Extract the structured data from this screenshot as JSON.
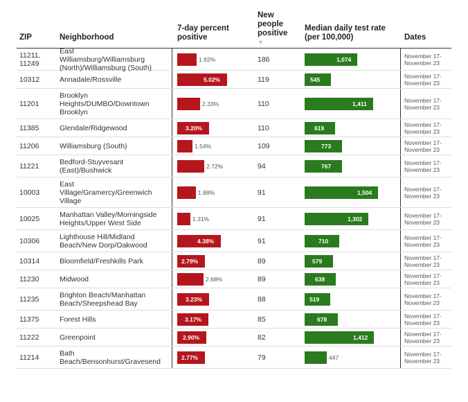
{
  "chart_data": {
    "type": "table",
    "columns": {
      "zip": "ZIP",
      "neighborhood": "Neighborhood",
      "pct": "7-day percent positive",
      "new": "New people positive",
      "sort_indicator": "▼",
      "rate": "Median daily test rate (per 100,000)",
      "dates": "Dates"
    },
    "pct_max": 5.02,
    "rate_max": 1504,
    "rows": [
      {
        "zip": "11211, 11249",
        "neighborhood": "East Williamsburg/Williamsburg (North)/Williamsburg (South)",
        "pct": 1.92,
        "pct_label": "1.92%",
        "new": "186",
        "rate": 1074,
        "rate_label": "1,074",
        "dates": "November 17-November 23"
      },
      {
        "zip": "10312",
        "neighborhood": "Annadale/Rossville",
        "pct": 5.02,
        "pct_label": "5.02%",
        "new": "119",
        "rate": 545,
        "rate_label": "545",
        "dates": "November 17-November 23"
      },
      {
        "zip": "11201",
        "neighborhood": "Brooklyn Heights/DUMBO/Downtown Brooklyn",
        "pct": 2.33,
        "pct_label": "2.33%",
        "new": "110",
        "rate": 1411,
        "rate_label": "1,411",
        "dates": "November 17-November 23"
      },
      {
        "zip": "11385",
        "neighborhood": "Glendale/Ridgewood",
        "pct": 3.2,
        "pct_label": "3.20%",
        "new": "110",
        "rate": 619,
        "rate_label": "619",
        "dates": "November 17-November 23"
      },
      {
        "zip": "11206",
        "neighborhood": "Williamsburg (South)",
        "pct": 1.54,
        "pct_label": "1.54%",
        "new": "109",
        "rate": 773,
        "rate_label": "773",
        "dates": "November 17-November 23"
      },
      {
        "zip": "11221",
        "neighborhood": "Bedford-Stuyvesant (East)/Bushwick",
        "pct": 2.72,
        "pct_label": "2.72%",
        "new": "94",
        "rate": 767,
        "rate_label": "767",
        "dates": "November 17-November 23"
      },
      {
        "zip": "10003",
        "neighborhood": "East Village/Gramercy/Greenwich Village",
        "pct": 1.88,
        "pct_label": "1.88%",
        "new": "91",
        "rate": 1504,
        "rate_label": "1,504",
        "dates": "November 17-November 23"
      },
      {
        "zip": "10025",
        "neighborhood": "Manhattan Valley/Morningside Heights/Upper West Side",
        "pct": 1.31,
        "pct_label": "1.31%",
        "new": "91",
        "rate": 1302,
        "rate_label": "1,302",
        "dates": "November 17-November 23"
      },
      {
        "zip": "10306",
        "neighborhood": "Lighthouse Hill/Midland Beach/New Dorp/Oakwood",
        "pct": 4.38,
        "pct_label": "4.38%",
        "new": "91",
        "rate": 710,
        "rate_label": "710",
        "dates": "November 17-November 23"
      },
      {
        "zip": "10314",
        "neighborhood": "Bloomfield/Freshkills Park",
        "pct": 2.79,
        "pct_label": "2.79%",
        "new": "89",
        "rate": 579,
        "rate_label": "579",
        "dates": "November 17-November 23"
      },
      {
        "zip": "11230",
        "neighborhood": "Midwood",
        "pct": 2.68,
        "pct_label": "2.68%",
        "new": "89",
        "rate": 638,
        "rate_label": "638",
        "dates": "November 17-November 23"
      },
      {
        "zip": "11235",
        "neighborhood": "Brighton Beach/Manhattan Beach/Sheepshead Bay",
        "pct": 3.23,
        "pct_label": "3.23%",
        "new": "88",
        "rate": 519,
        "rate_label": "519",
        "dates": "November 17-November 23"
      },
      {
        "zip": "11375",
        "neighborhood": "Forest Hills",
        "pct": 3.17,
        "pct_label": "3.17%",
        "new": "85",
        "rate": 678,
        "rate_label": "678",
        "dates": "November 17-November 23"
      },
      {
        "zip": "11222",
        "neighborhood": "Greenpoint",
        "pct": 2.9,
        "pct_label": "2.90%",
        "new": "82",
        "rate": 1412,
        "rate_label": "1,412",
        "dates": "November 17-November 23"
      },
      {
        "zip": "11214",
        "neighborhood": "Bath Beach/Bensonhurst/Gravesend",
        "pct": 2.77,
        "pct_label": "2.77%",
        "new": "79",
        "rate": 447,
        "rate_label": "447",
        "dates": "November 17-November 23"
      }
    ],
    "colors": {
      "pct_bar": "#b5161d",
      "rate_bar": "#2a7a1e"
    }
  }
}
